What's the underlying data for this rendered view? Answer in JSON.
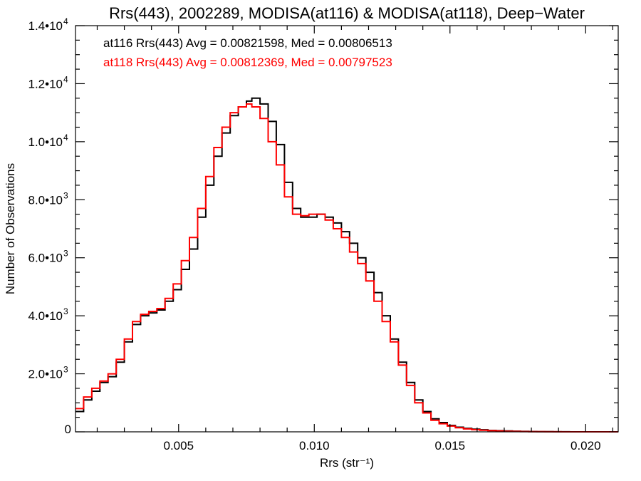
{
  "chart_data": {
    "type": "line",
    "title": "Rrs(443), 2002289, MODISA(at116) & MODISA(at118), Deep−Water",
    "xlabel": "Rrs (str⁻¹)",
    "ylabel": "Number of Observations",
    "xlim": [
      0.0012,
      0.0212
    ],
    "ylim": [
      0,
      14000
    ],
    "x_ticks": [
      {
        "value": 0.005,
        "label": "0.005"
      },
      {
        "value": 0.01,
        "label": "0.010"
      },
      {
        "value": 0.015,
        "label": "0.015"
      },
      {
        "value": 0.02,
        "label": "0.020"
      }
    ],
    "y_ticks": [
      {
        "value": 0,
        "mant": "0",
        "exp": ""
      },
      {
        "value": 2000,
        "mant": "2.0•10",
        "exp": "3"
      },
      {
        "value": 4000,
        "mant": "4.0•10",
        "exp": "3"
      },
      {
        "value": 6000,
        "mant": "6.0•10",
        "exp": "3"
      },
      {
        "value": 8000,
        "mant": "8.0•10",
        "exp": "3"
      },
      {
        "value": 10000,
        "mant": "1.0•10",
        "exp": "4"
      },
      {
        "value": 12000,
        "mant": "1.2•10",
        "exp": "4"
      },
      {
        "value": 14000,
        "mant": "1.4•10",
        "exp": "4"
      }
    ],
    "annotations": [
      {
        "text": "at116 Rrs(443) Avg = 0.00821598, Med = 0.00806513",
        "color": "#000000"
      },
      {
        "text": "at118 Rrs(443) Avg = 0.00812369, Med = 0.00797523",
        "color": "#ff0000"
      }
    ],
    "series": [
      {
        "color": "#000000",
        "x": [
          0.0012,
          0.0015,
          0.0018,
          0.0021,
          0.0024,
          0.0027,
          0.003,
          0.0033,
          0.0036,
          0.0039,
          0.0042,
          0.0045,
          0.0048,
          0.0051,
          0.0054,
          0.0057,
          0.006,
          0.0063,
          0.0066,
          0.0069,
          0.0072,
          0.0075,
          0.0077,
          0.008,
          0.0083,
          0.0086,
          0.0089,
          0.0092,
          0.0095,
          0.0098,
          0.0101,
          0.0104,
          0.0107,
          0.011,
          0.0113,
          0.0116,
          0.0119,
          0.0122,
          0.0125,
          0.0128,
          0.0131,
          0.0134,
          0.0137,
          0.014,
          0.0143,
          0.0146,
          0.0149,
          0.0152,
          0.0155,
          0.0158,
          0.0161,
          0.0164,
          0.0167,
          0.017,
          0.0173,
          0.0176,
          0.0179,
          0.0182,
          0.0185,
          0.0188,
          0.0191,
          0.0194,
          0.0197,
          0.02,
          0.0203,
          0.0206,
          0.0209,
          0.0212
        ],
        "values": [
          700,
          1100,
          1400,
          1700,
          1900,
          2400,
          3100,
          3700,
          4000,
          4100,
          4200,
          4500,
          4900,
          5600,
          6300,
          7400,
          8500,
          9500,
          10300,
          10900,
          11200,
          11400,
          11500,
          11300,
          10700,
          9900,
          8600,
          7700,
          7400,
          7400,
          7500,
          7400,
          7200,
          6900,
          6500,
          6000,
          5500,
          4800,
          4000,
          3200,
          2400,
          1700,
          1100,
          700,
          450,
          320,
          220,
          160,
          120,
          90,
          70,
          50,
          40,
          30,
          22,
          15,
          10,
          6,
          4,
          3,
          2,
          1,
          1,
          0,
          0,
          0,
          0,
          0
        ]
      },
      {
        "color": "#ff0000",
        "x": [
          0.0012,
          0.0015,
          0.0018,
          0.0021,
          0.0024,
          0.0027,
          0.003,
          0.0033,
          0.0036,
          0.0039,
          0.0042,
          0.0045,
          0.0048,
          0.0051,
          0.0054,
          0.0057,
          0.006,
          0.0063,
          0.0066,
          0.0069,
          0.0072,
          0.0075,
          0.0077,
          0.008,
          0.0083,
          0.0086,
          0.0089,
          0.0092,
          0.0095,
          0.0098,
          0.0101,
          0.0104,
          0.0107,
          0.011,
          0.0113,
          0.0116,
          0.0119,
          0.0122,
          0.0125,
          0.0128,
          0.0131,
          0.0134,
          0.0137,
          0.014,
          0.0143,
          0.0146,
          0.0149,
          0.0152,
          0.0155,
          0.0158,
          0.0161,
          0.0164,
          0.0167,
          0.017,
          0.0173,
          0.0176,
          0.0179,
          0.0182,
          0.0185,
          0.0188,
          0.0191,
          0.0194,
          0.0197,
          0.02,
          0.0203,
          0.0206,
          0.0209,
          0.0212
        ],
        "values": [
          800,
          1200,
          1500,
          1750,
          2000,
          2500,
          3200,
          3800,
          4050,
          4150,
          4250,
          4600,
          5100,
          5900,
          6700,
          7700,
          8800,
          9800,
          10500,
          11000,
          11200,
          11300,
          11200,
          10800,
          10000,
          9200,
          8100,
          7500,
          7450,
          7500,
          7500,
          7300,
          7000,
          6700,
          6200,
          5800,
          5200,
          4500,
          3800,
          3100,
          2300,
          1600,
          1000,
          650,
          400,
          280,
          200,
          140,
          100,
          75,
          55,
          40,
          30,
          20,
          15,
          10,
          6,
          4,
          3,
          2,
          1,
          1,
          0,
          0,
          0,
          0,
          0,
          0
        ]
      }
    ]
  }
}
